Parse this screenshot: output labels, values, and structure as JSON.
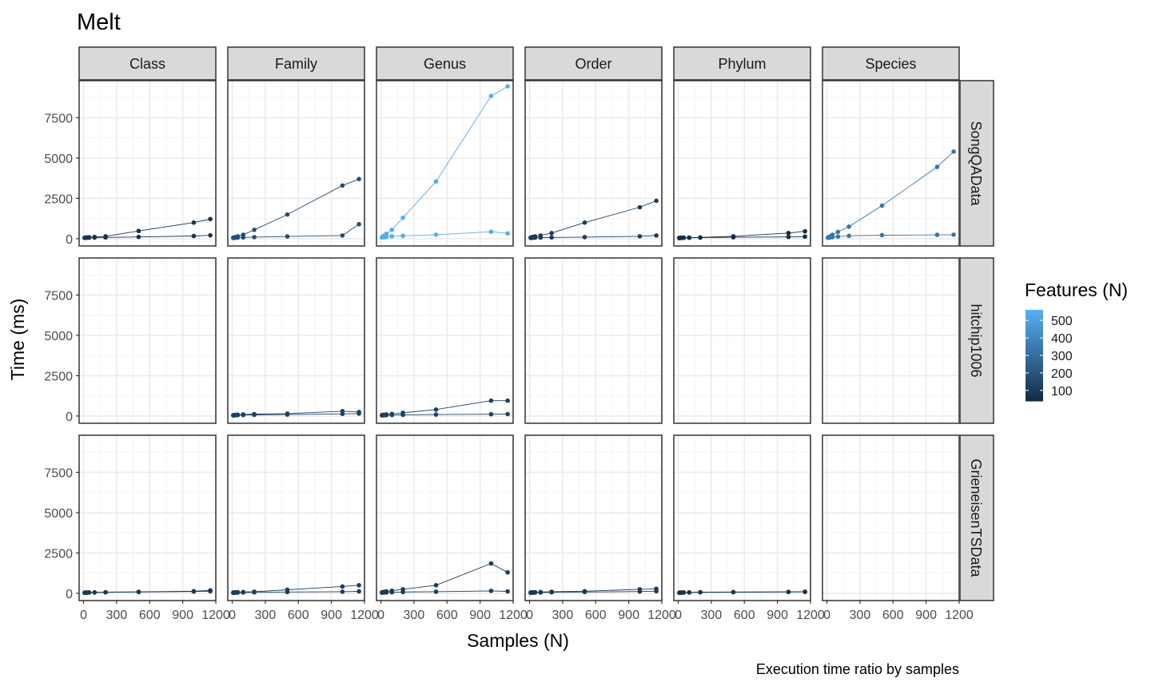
{
  "title": "Melt",
  "caption": "Execution time ratio by samples",
  "xlabel": "Samples (N)",
  "ylabel": "Time (ms)",
  "legend": {
    "title": "Features (N)",
    "ticks": [
      "100",
      "200",
      "300",
      "400",
      "500"
    ],
    "tick_values": [
      100,
      200,
      300,
      400,
      500
    ],
    "range": [
      40,
      560
    ],
    "color_low": "#132B43",
    "color_high": "#56B1F7",
    "placement": "right"
  },
  "chart_data": {
    "type": "line",
    "facet_cols": [
      "Class",
      "Family",
      "Genus",
      "Order",
      "Phylum",
      "Species"
    ],
    "facet_rows": [
      "SongQAData",
      "hitchip1006",
      "GrieneisenTSData"
    ],
    "x_ticks": [
      "0",
      "300",
      "600",
      "900",
      "1200"
    ],
    "x_tick_values": [
      0,
      300,
      600,
      900,
      1200
    ],
    "y_ticks": [
      "0",
      "2500",
      "5000",
      "7500"
    ],
    "y_tick_values": [
      0,
      2500,
      5000,
      7500
    ],
    "xlim": [
      -40,
      1200
    ],
    "ylim": [
      -450,
      9800
    ],
    "grid": true,
    "panels": [
      {
        "row": "SongQAData",
        "col": "Class",
        "series": [
          {
            "features": 75,
            "x": [
              10,
              20,
              30,
              50,
              100,
              200,
              500,
              1000,
              1150
            ],
            "y": [
              60,
              70,
              80,
              90,
              110,
              150,
              480,
              1000,
              1220
            ]
          },
          {
            "features": 75,
            "x": [
              10,
              20,
              30,
              50,
              100,
              200,
              500,
              1000,
              1150
            ],
            "y": [
              50,
              55,
              60,
              65,
              70,
              80,
              110,
              170,
              210
            ]
          }
        ]
      },
      {
        "row": "SongQAData",
        "col": "Family",
        "series": [
          {
            "features": 180,
            "x": [
              10,
              20,
              30,
              50,
              100,
              200,
              500,
              1000,
              1150
            ],
            "y": [
              70,
              80,
              100,
              150,
              250,
              550,
              1500,
              3300,
              3700
            ]
          },
          {
            "features": 180,
            "x": [
              10,
              20,
              30,
              50,
              100,
              200,
              500,
              1000,
              1150
            ],
            "y": [
              50,
              55,
              60,
              70,
              80,
              100,
              140,
              200,
              900
            ]
          }
        ]
      },
      {
        "row": "SongQAData",
        "col": "Genus",
        "series": [
          {
            "features": 540,
            "x": [
              10,
              20,
              30,
              50,
              100,
              200,
              500,
              1000,
              1150
            ],
            "y": [
              100,
              150,
              200,
              300,
              550,
              1300,
              3550,
              8850,
              9450
            ]
          },
          {
            "features": 540,
            "x": [
              10,
              20,
              30,
              50,
              100,
              200,
              500,
              1000,
              1150
            ],
            "y": [
              80,
              90,
              100,
              120,
              150,
              180,
              250,
              430,
              330
            ]
          }
        ]
      },
      {
        "row": "SongQAData",
        "col": "Order",
        "series": [
          {
            "features": 110,
            "x": [
              10,
              20,
              30,
              50,
              100,
              200,
              500,
              1000,
              1150
            ],
            "y": [
              70,
              90,
              110,
              150,
              200,
              350,
              1000,
              1950,
              2350
            ]
          },
          {
            "features": 110,
            "x": [
              10,
              20,
              30,
              50,
              100,
              200,
              500,
              1000,
              1150
            ],
            "y": [
              50,
              55,
              60,
              65,
              70,
              80,
              100,
              150,
              200
            ]
          }
        ]
      },
      {
        "row": "SongQAData",
        "col": "Phylum",
        "series": [
          {
            "features": 50,
            "x": [
              10,
              20,
              30,
              50,
              100,
              200,
              500,
              1000,
              1150
            ],
            "y": [
              50,
              55,
              60,
              65,
              70,
              80,
              150,
              350,
              460
            ]
          },
          {
            "features": 50,
            "x": [
              10,
              20,
              30,
              50,
              100,
              200,
              500,
              1000,
              1150
            ],
            "y": [
              40,
              45,
              50,
              55,
              60,
              70,
              90,
              110,
              130
            ]
          }
        ]
      },
      {
        "row": "SongQAData",
        "col": "Species",
        "series": [
          {
            "features": 330,
            "x": [
              10,
              20,
              30,
              50,
              100,
              200,
              500,
              1000,
              1150
            ],
            "y": [
              80,
              110,
              150,
              250,
              420,
              750,
              2050,
              4450,
              5400
            ]
          },
          {
            "features": 330,
            "x": [
              10,
              20,
              30,
              50,
              100,
              200,
              500,
              1000,
              1150
            ],
            "y": [
              60,
              70,
              80,
              100,
              130,
              180,
              220,
              240,
              250
            ]
          }
        ]
      },
      {
        "row": "hitchip1006",
        "col": "Family",
        "series": [
          {
            "features": 130,
            "x": [
              10,
              20,
              30,
              50,
              100,
              200,
              500,
              1000,
              1150
            ],
            "y": [
              50,
              60,
              70,
              80,
              100,
              120,
              150,
              300,
              250
            ]
          },
          {
            "features": 130,
            "x": [
              10,
              20,
              30,
              50,
              100,
              200,
              500,
              1000,
              1150
            ],
            "y": [
              40,
              45,
              50,
              55,
              60,
              70,
              90,
              130,
              150
            ]
          }
        ]
      },
      {
        "row": "hitchip1006",
        "col": "Genus",
        "series": [
          {
            "features": 130,
            "x": [
              10,
              20,
              30,
              50,
              100,
              200,
              500,
              1000,
              1150
            ],
            "y": [
              60,
              70,
              80,
              100,
              130,
              200,
              400,
              950,
              950
            ]
          },
          {
            "features": 130,
            "x": [
              10,
              20,
              30,
              50,
              100,
              200,
              500,
              1000,
              1150
            ],
            "y": [
              40,
              45,
              50,
              55,
              60,
              70,
              90,
              110,
              120
            ]
          }
        ]
      },
      {
        "row": "GrieneisenTSData",
        "col": "Class",
        "series": [
          {
            "features": 90,
            "x": [
              10,
              20,
              30,
              50,
              100,
              200,
              500,
              1000,
              1150
            ],
            "y": [
              40,
              45,
              50,
              55,
              60,
              70,
              90,
              130,
              180
            ]
          },
          {
            "features": 90,
            "x": [
              10,
              20,
              30,
              50,
              100,
              200,
              500,
              1000,
              1150
            ],
            "y": [
              30,
              35,
              40,
              45,
              50,
              60,
              80,
              110,
              130
            ]
          }
        ]
      },
      {
        "row": "GrieneisenTSData",
        "col": "Family",
        "series": [
          {
            "features": 110,
            "x": [
              10,
              20,
              30,
              50,
              100,
              200,
              500,
              1000,
              1150
            ],
            "y": [
              50,
              55,
              60,
              70,
              80,
              100,
              220,
              420,
              500
            ]
          },
          {
            "features": 110,
            "x": [
              10,
              20,
              30,
              50,
              100,
              200,
              500,
              1000,
              1150
            ],
            "y": [
              30,
              35,
              40,
              45,
              50,
              60,
              80,
              100,
              120
            ]
          }
        ]
      },
      {
        "row": "GrieneisenTSData",
        "col": "Genus",
        "series": [
          {
            "features": 110,
            "x": [
              10,
              20,
              30,
              50,
              100,
              200,
              500,
              1000,
              1150
            ],
            "y": [
              60,
              70,
              90,
              120,
              160,
              250,
              500,
              1850,
              1300
            ]
          },
          {
            "features": 110,
            "x": [
              10,
              20,
              30,
              50,
              100,
              200,
              500,
              1000,
              1150
            ],
            "y": [
              40,
              45,
              50,
              55,
              60,
              80,
              100,
              150,
              120
            ]
          }
        ]
      },
      {
        "row": "GrieneisenTSData",
        "col": "Order",
        "series": [
          {
            "features": 100,
            "x": [
              10,
              20,
              30,
              50,
              100,
              200,
              500,
              1000,
              1150
            ],
            "y": [
              50,
              55,
              60,
              70,
              80,
              100,
              130,
              250,
              280
            ]
          },
          {
            "features": 100,
            "x": [
              10,
              20,
              30,
              50,
              100,
              200,
              500,
              1000,
              1150
            ],
            "y": [
              30,
              35,
              40,
              45,
              50,
              60,
              80,
              110,
              130
            ]
          }
        ]
      },
      {
        "row": "GrieneisenTSData",
        "col": "Phylum",
        "series": [
          {
            "features": 80,
            "x": [
              10,
              20,
              30,
              50,
              100,
              200,
              500,
              1000,
              1150
            ],
            "y": [
              40,
              45,
              50,
              55,
              60,
              70,
              80,
              90,
              100
            ]
          },
          {
            "features": 80,
            "x": [
              10,
              20,
              30,
              50,
              100,
              200,
              500,
              1000,
              1150
            ],
            "y": [
              30,
              35,
              40,
              45,
              50,
              60,
              70,
              80,
              90
            ]
          }
        ]
      }
    ]
  }
}
